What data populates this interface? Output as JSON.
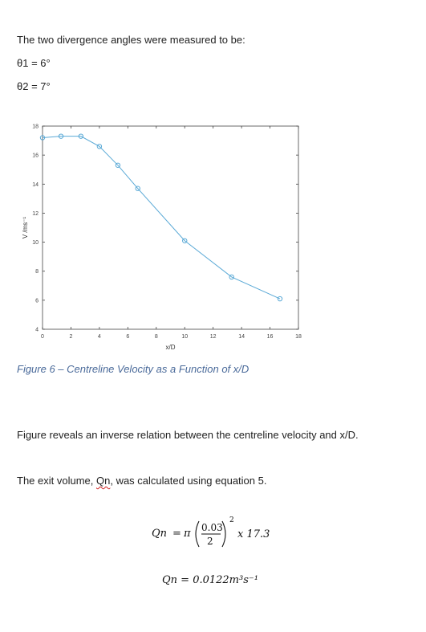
{
  "doc": {
    "intro": "The two divergence angles were measured to be:",
    "theta1": "θ1 = 6°",
    "theta2": "θ2 = 7°",
    "caption": "Figure 6 – Centreline Velocity as a Function of x/D",
    "para1": "Figure reveals an inverse relation between the centreline velocity and x/D.",
    "para2_before": "The exit volume, ",
    "para2_word": "Qn",
    "para2_after": ", was calculated using equation 5."
  },
  "equation": {
    "lhs": "Qn",
    "eq": "=",
    "pi": "π",
    "numerator": "0.03",
    "denominator": "2",
    "power": "2",
    "times": "x 17.3",
    "result": "Qn = 0.0122m³s⁻¹"
  },
  "chart_data": {
    "type": "line",
    "xlabel": "x/D",
    "ylabel": "V /ms⁻¹",
    "xlim": [
      0,
      18
    ],
    "ylim": [
      4,
      18
    ],
    "xticks": [
      0,
      2,
      4,
      6,
      8,
      10,
      12,
      14,
      16,
      18
    ],
    "yticks": [
      4,
      6,
      8,
      10,
      12,
      14,
      16,
      18
    ],
    "grid": false,
    "series": [
      {
        "color": "#5aa9d6",
        "marker": "circle",
        "x": [
          0,
          1.3,
          2.7,
          4,
          5.3,
          6.7,
          10,
          13.3,
          16.7
        ],
        "y": [
          17.2,
          17.3,
          17.3,
          16.6,
          15.3,
          13.7,
          10.1,
          7.6,
          6.1
        ]
      }
    ]
  }
}
